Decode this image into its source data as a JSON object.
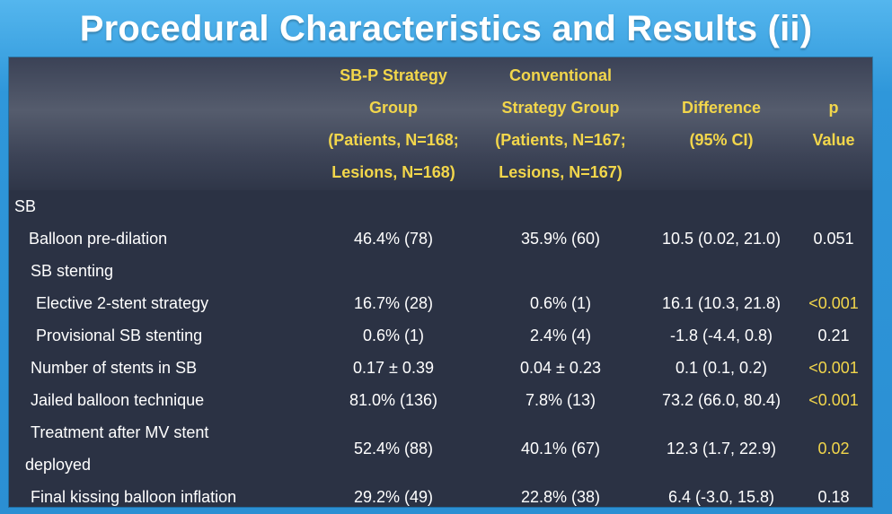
{
  "title": "Procedural Characteristics and Results (ii)",
  "header": {
    "col_a": [
      "SB-P Strategy",
      "Group",
      "(Patients, N=168;",
      "Lesions, N=168)"
    ],
    "col_b": [
      "Conventional",
      "Strategy Group",
      "(Patients, N=167;",
      "Lesions, N=167)"
    ],
    "col_c": [
      "Difference",
      "(95% CI)"
    ],
    "col_d": [
      "p",
      "Value"
    ]
  },
  "rows": [
    {
      "label": "SB",
      "a": "",
      "b": "",
      "c": "",
      "d": "",
      "sig": false
    },
    {
      "label": "Balloon pre-dilation",
      "a": "46.4% (78)",
      "b": "35.9% (60)",
      "c": "10.5 (0.02, 21.0)",
      "d": "0.051",
      "sig": false
    },
    {
      "label": "SB stenting",
      "a": "",
      "b": "",
      "c": "",
      "d": "",
      "sig": false
    },
    {
      "label": "Elective 2-stent strategy",
      "a": "16.7% (28)",
      "b": "0.6% (1)",
      "c": "16.1 (10.3, 21.8)",
      "d": "<0.001",
      "sig": true
    },
    {
      "label": "Provisional SB stenting",
      "a": "0.6% (1)",
      "b": "2.4% (4)",
      "c": "-1.8 (-4.4, 0.8)",
      "d": "0.21",
      "sig": false
    },
    {
      "label": "Number of stents in SB",
      "a": "0.17 ± 0.39",
      "b": "0.04 ± 0.23",
      "c": "0.1 (0.1, 0.2)",
      "d": "<0.001",
      "sig": true
    },
    {
      "label": "Jailed balloon technique",
      "a": "81.0% (136)",
      "b": "7.8% (13)",
      "c": "73.2 (66.0, 80.4)",
      "d": "<0.001",
      "sig": true
    },
    {
      "label_lines": [
        "Treatment after MV stent",
        "deployed"
      ],
      "a": "52.4% (88)",
      "b": "40.1% (67)",
      "c": "12.3 (1.7, 22.9)",
      "d": "0.02",
      "sig": true
    },
    {
      "label": "Final kissing balloon inflation",
      "a": "29.2% (49)",
      "b": "22.8% (38)",
      "c": "6.4 (-3.0, 15.8)",
      "d": "0.18",
      "sig": false
    }
  ],
  "colors": {
    "slide_background": "#2f97da",
    "panel_background": "#2b3244",
    "header_text": "#f2d64b",
    "body_text": "#ffffff",
    "significant_p": "#f2d64b"
  }
}
